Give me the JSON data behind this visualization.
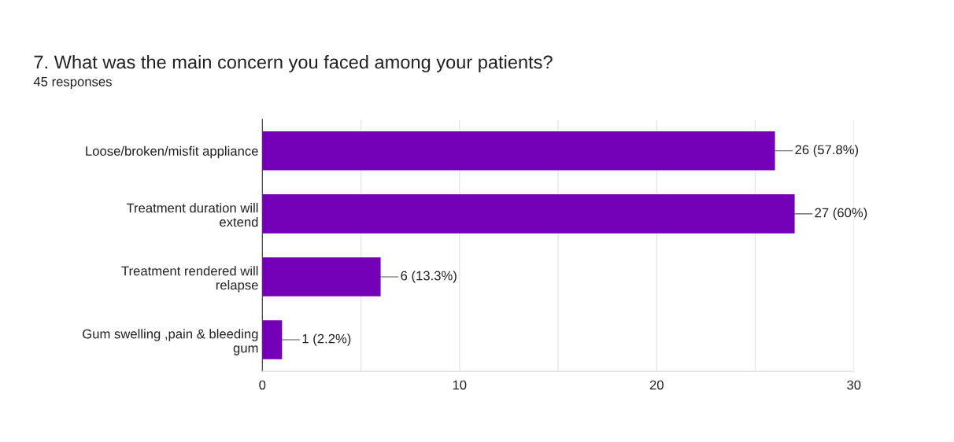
{
  "chart_data": {
    "type": "bar",
    "orientation": "horizontal",
    "title": "7. What was the main concern you faced among your patients?",
    "subtitle": "45 responses",
    "categories": [
      "Loose/broken/misfit appliance",
      "Treatment duration will extend",
      "Treatment rendered will relapse",
      "Gum swelling ,pain & bleeding gum"
    ],
    "values": [
      26,
      27,
      6,
      1
    ],
    "color": "#7400b8",
    "value_labels": [
      "26 (57.8%)",
      "27 (60%)",
      "6 (13.3%)",
      "1 (2.2%)"
    ],
    "xlim": [
      0,
      30
    ],
    "xticks": [
      0,
      {
        "value": 5,
        "label": null
      },
      10,
      {
        "value": 15,
        "label": null
      },
      20,
      {
        "value": 25,
        "label": null
      },
      30
    ],
    "grid": "x",
    "legend": false
  }
}
